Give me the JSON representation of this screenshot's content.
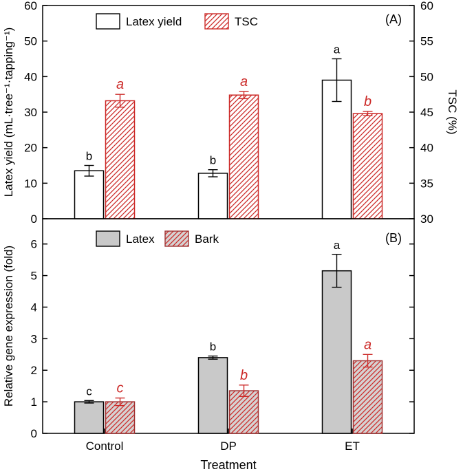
{
  "figure": {
    "x_axis": {
      "label": "Treatment",
      "categories": [
        "Control",
        "DP",
        "ET"
      ]
    },
    "colors": {
      "red": "#cc2a28",
      "black": "#000000",
      "gray_fill": "#c9c9c9",
      "bark_fill": "#d6d2d2",
      "bark_stroke": "#a03232",
      "white": "#ffffff"
    }
  },
  "chart_data": [
    {
      "type": "bar",
      "panel_label": "(A)",
      "categories": [
        "Control",
        "DP",
        "ET"
      ],
      "axes": {
        "left": {
          "label": "Latex yield (mL·tree⁻¹·tapping⁻¹)",
          "min": 0,
          "max": 60,
          "ticks": [
            0,
            10,
            20,
            30,
            40,
            50,
            60
          ]
        },
        "right": {
          "label": "TSC (%)",
          "min": 30,
          "max": 60,
          "ticks": [
            30,
            35,
            40,
            45,
            50,
            55,
            60
          ]
        }
      },
      "legend": [
        {
          "label": "Latex yield",
          "swatch": "white"
        },
        {
          "label": "TSC",
          "swatch": "red-hatch"
        }
      ],
      "series": [
        {
          "name": "Latex yield",
          "axis": "left",
          "swatch": "white",
          "values": [
            13.5,
            12.8,
            39.0
          ],
          "errors": [
            1.5,
            1.0,
            6.0
          ],
          "letters": [
            "b",
            "b",
            "a"
          ],
          "letter_style": "black"
        },
        {
          "name": "TSC",
          "axis": "right",
          "swatch": "red-hatch",
          "values": [
            46.6,
            47.4,
            44.8
          ],
          "errors": [
            0.9,
            0.5,
            0.3
          ],
          "letters": [
            "a",
            "a",
            "b"
          ],
          "letter_style": "red"
        }
      ]
    },
    {
      "type": "bar",
      "panel_label": "(B)",
      "categories": [
        "Control",
        "DP",
        "ET"
      ],
      "axes": {
        "left": {
          "label": "Relative gene expression (fold)",
          "min": 0,
          "max": 6.8,
          "ticks": [
            0,
            1,
            2,
            3,
            4,
            5,
            6
          ]
        }
      },
      "legend": [
        {
          "label": "Latex",
          "swatch": "gray"
        },
        {
          "label": "Bark",
          "swatch": "red-hatch-gray"
        }
      ],
      "series": [
        {
          "name": "Latex",
          "axis": "left",
          "swatch": "gray",
          "values": [
            1.0,
            2.4,
            5.15
          ],
          "errors": [
            0.04,
            0.05,
            0.52
          ],
          "letters": [
            "c",
            "b",
            "a"
          ],
          "letter_style": "black"
        },
        {
          "name": "Bark",
          "axis": "left",
          "swatch": "red-hatch-gray",
          "values": [
            1.0,
            1.35,
            2.3
          ],
          "errors": [
            0.12,
            0.18,
            0.2
          ],
          "letters": [
            "c",
            "b",
            "a"
          ],
          "letter_style": "red"
        }
      ]
    }
  ]
}
